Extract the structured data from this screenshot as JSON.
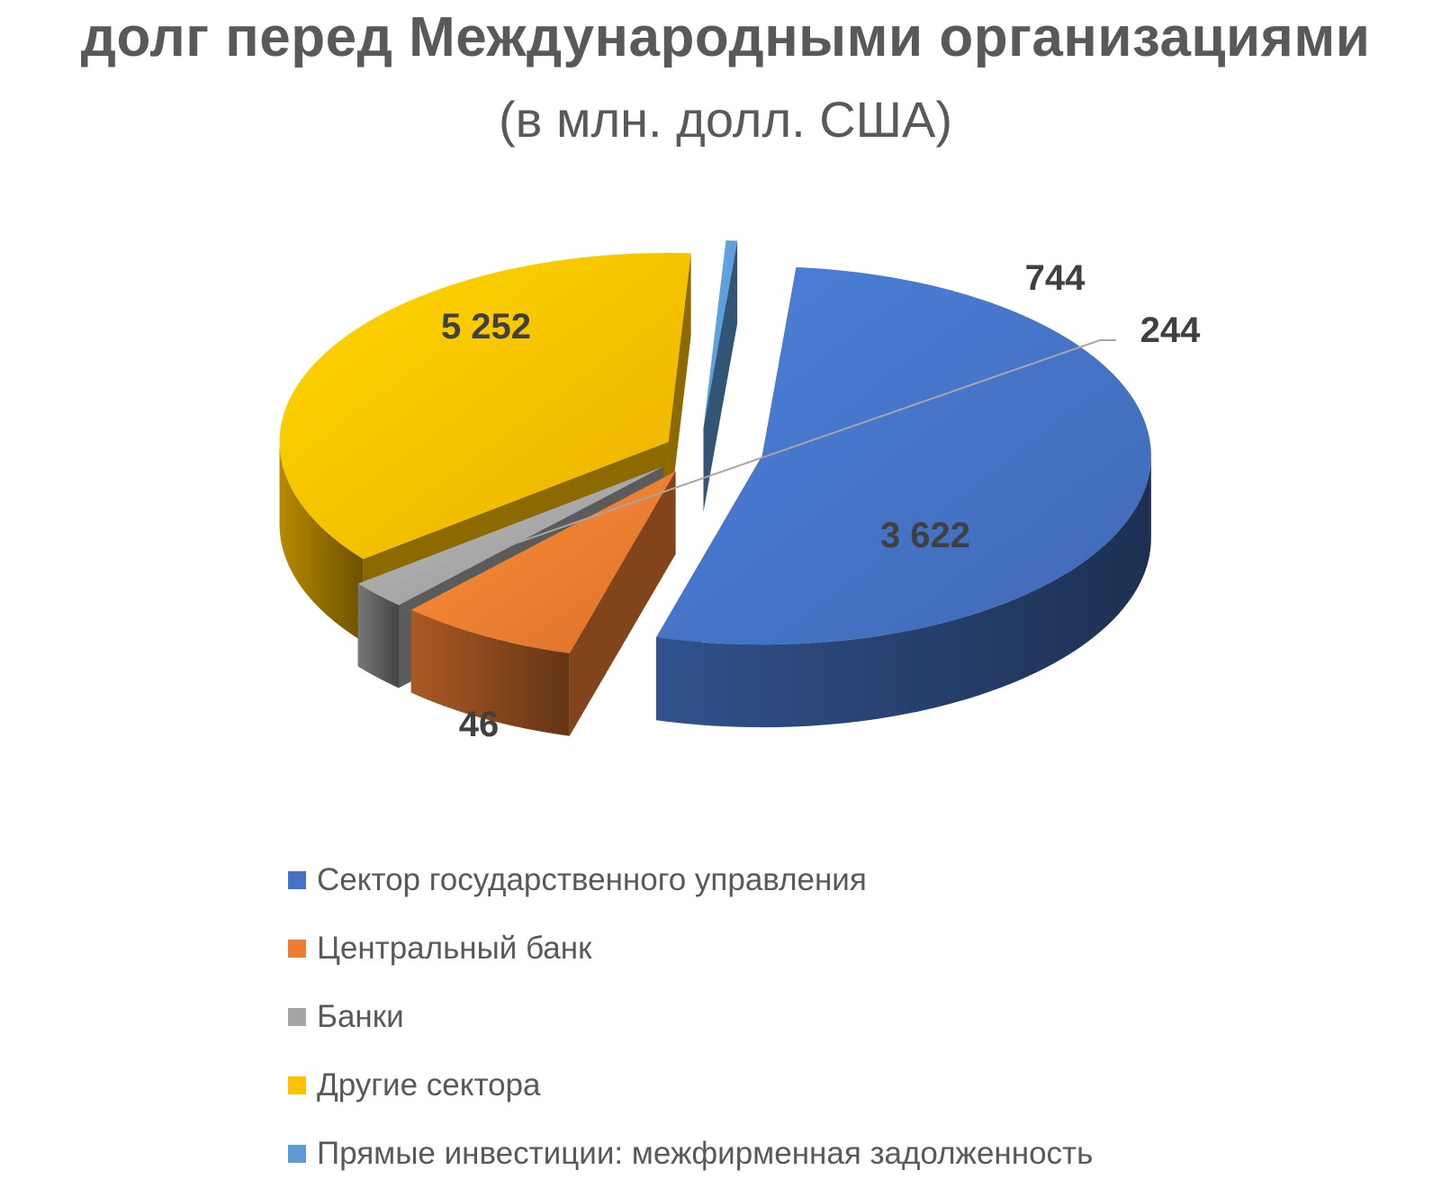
{
  "chart_data": {
    "type": "pie",
    "title": "долг перед Международными организациями",
    "subtitle": "(в млн. долл. США)",
    "categories": [
      "Сектор государственного управления",
      "Центральный банк",
      "Банки",
      "Другие сектора",
      "Прямые инвестиции: межфирменная задолженность"
    ],
    "values": [
      5252,
      744,
      244,
      3622,
      46
    ],
    "value_labels": [
      "5 252",
      "744",
      "244",
      "3 622",
      "46"
    ],
    "colors": [
      "#4472C4",
      "#ED7D31",
      "#A5A5A5",
      "#FFC000",
      "#5B9BD5"
    ],
    "exploded": true,
    "three_d": true,
    "legend_position": "bottom"
  }
}
